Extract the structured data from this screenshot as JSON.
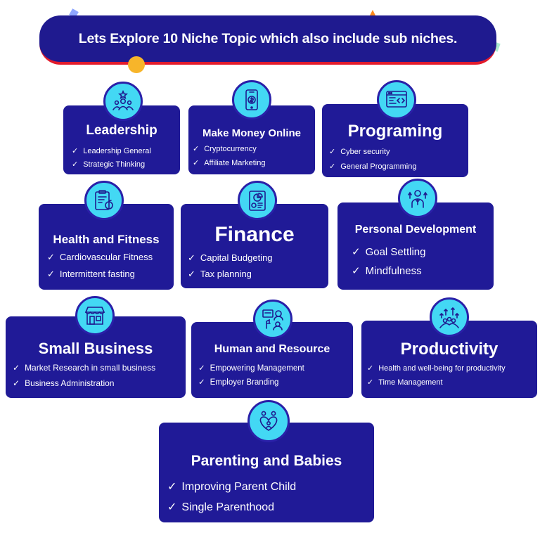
{
  "banner": {
    "title": "Lets Explore 10 Niche Topic which also include sub niches."
  },
  "topics": [
    {
      "title": "Leadership",
      "icon": "leader-group-icon",
      "items": [
        "Leadership General",
        "Strategic Thinking"
      ]
    },
    {
      "title": "Make Money Online",
      "icon": "phone-money-icon",
      "items": [
        "Cryptocurrency",
        "Affiliate Marketing"
      ]
    },
    {
      "title": "Programing",
      "icon": "code-window-icon",
      "items": [
        "Cyber security",
        "General Programming"
      ]
    },
    {
      "title": "Health and Fitness",
      "icon": "clipboard-apple-icon",
      "items": [
        "Cardiovascular Fitness",
        "Intermittent fasting"
      ]
    },
    {
      "title": "Finance",
      "icon": "finance-report-icon",
      "items": [
        "Capital Budgeting",
        "Tax planning"
      ]
    },
    {
      "title": "Personal Development",
      "icon": "person-growth-icon",
      "items": [
        "Goal Settling",
        "Mindfulness"
      ]
    },
    {
      "title": "Small Business",
      "icon": "storefront-icon",
      "items": [
        "Market Research in small business",
        "Business Administration"
      ]
    },
    {
      "title": "Human and Resource",
      "icon": "hr-people-icon",
      "items": [
        "Empowering Management",
        "Employer Branding"
      ]
    },
    {
      "title": "Productivity",
      "icon": "team-growth-icon",
      "items": [
        "Health and well-being for productivity",
        "Time Management"
      ]
    },
    {
      "title": "Parenting and Babies",
      "icon": "family-heart-icon",
      "items": [
        "Improving Parent Child",
        "Single Parenthood"
      ]
    }
  ],
  "check_mark": "✓",
  "colors": {
    "card": "#201a97",
    "icon_circle": "#43d8f4",
    "banner_underline": "#e21b2c",
    "accent_dot": "#f7b52a"
  }
}
